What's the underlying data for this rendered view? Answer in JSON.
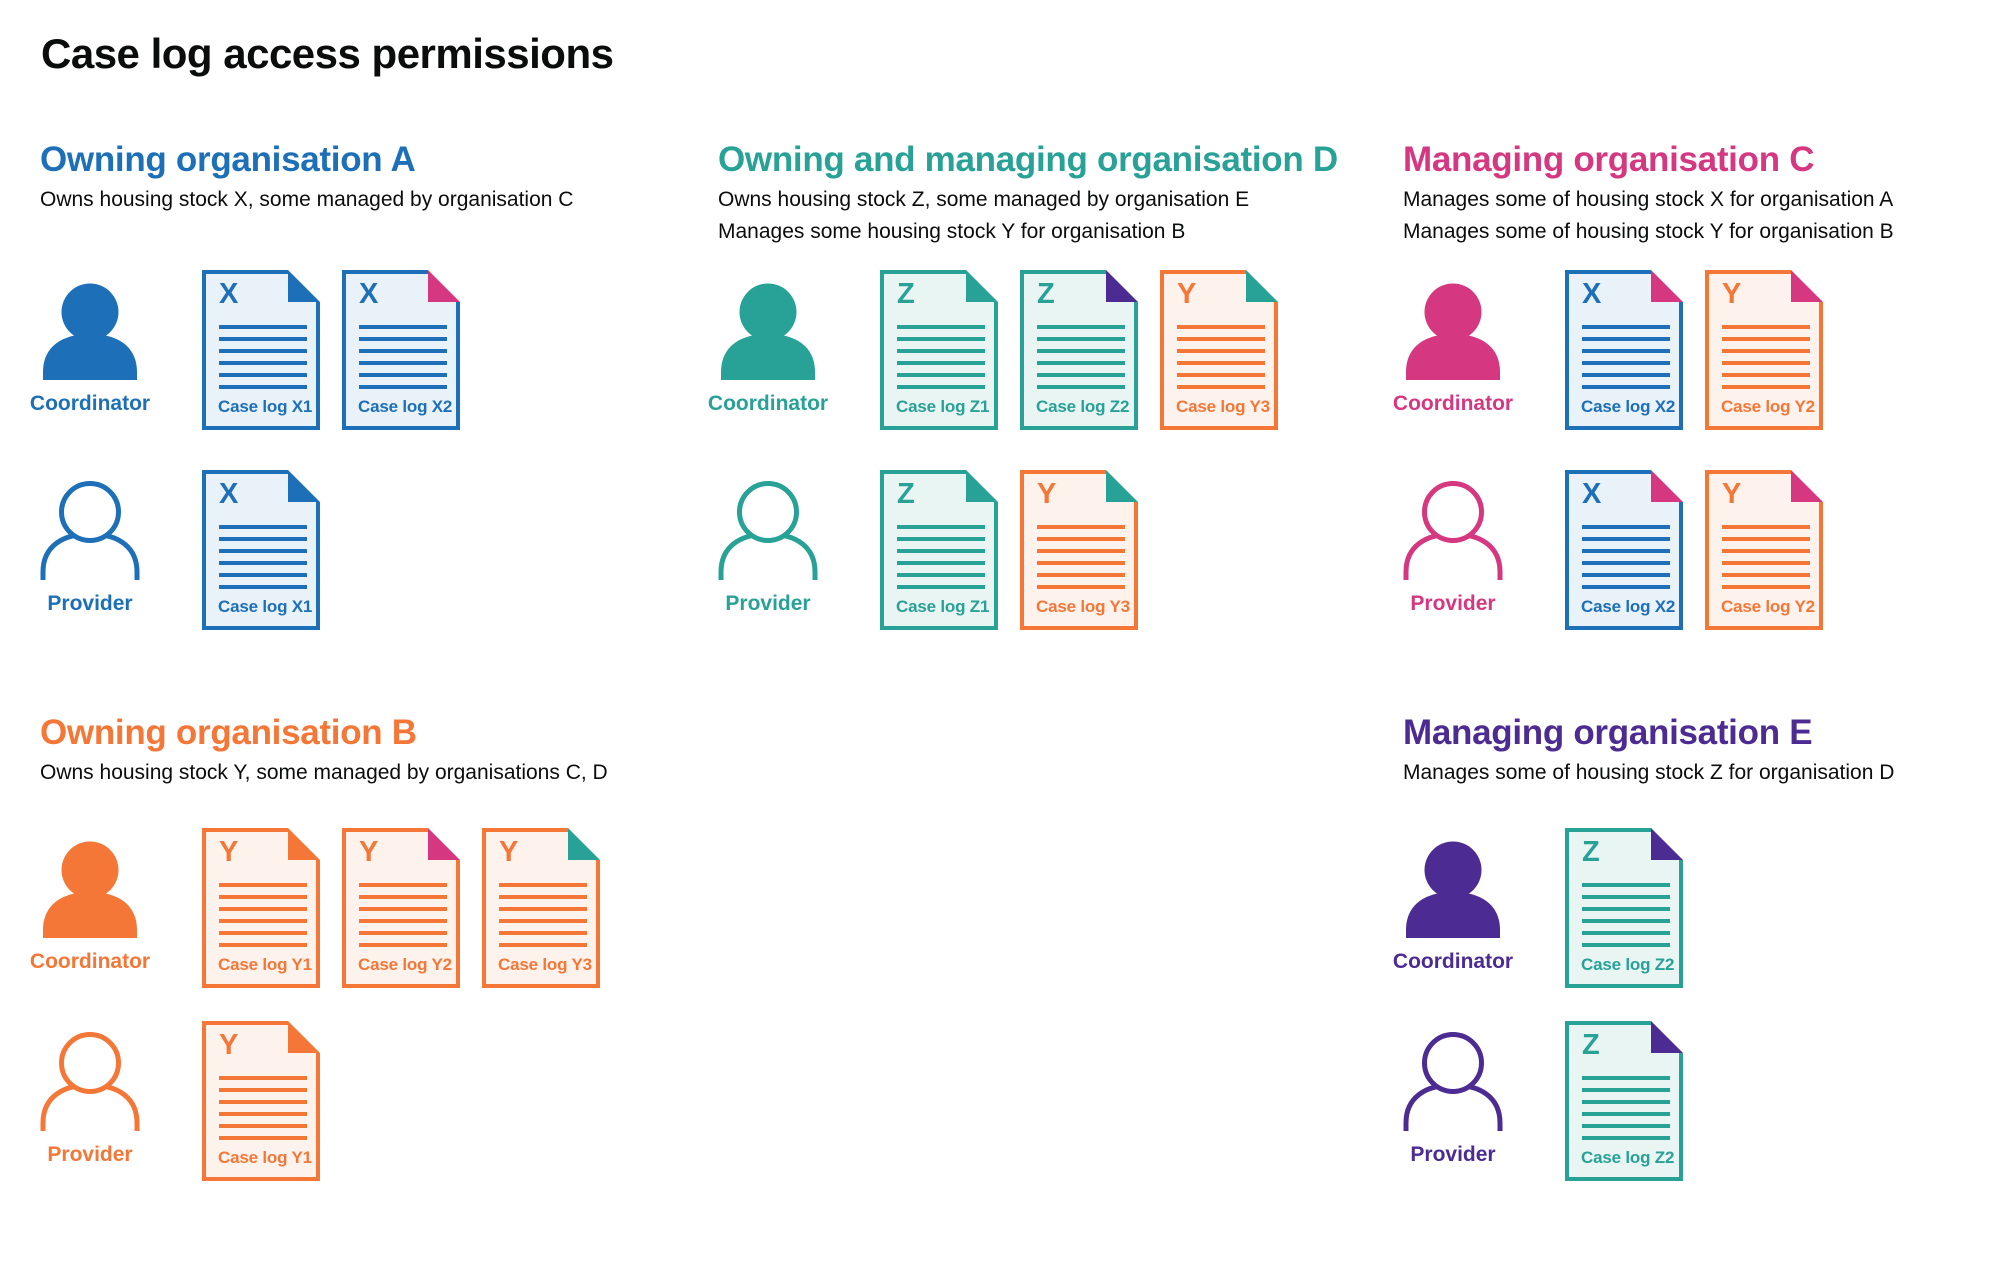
{
  "page_title": "Case log access permissions",
  "palette": {
    "blue": "#1d70b8",
    "teal": "#28a197",
    "orange": "#f47738",
    "pink": "#d53880",
    "purple": "#4c2c92",
    "text": "#0b0c0c",
    "blue_tint": "#e9f1f9",
    "teal_tint": "#e9f5f3",
    "orange_tint": "#fdf2ec"
  },
  "roles": {
    "coordinator": "Coordinator",
    "provider": "Provider"
  },
  "sections": [
    {
      "id": "org-a",
      "title": "Owning organisation A",
      "color": "blue",
      "description": [
        "Owns housing stock X, some managed by organisation C"
      ],
      "rows": [
        {
          "role": "Coordinator",
          "docs": [
            {
              "letter": "X",
              "label": "Case log X1",
              "scheme": "blue",
              "fold": "blue"
            },
            {
              "letter": "X",
              "label": "Case log X2",
              "scheme": "blue",
              "fold": "pink"
            }
          ]
        },
        {
          "role": "Provider",
          "docs": [
            {
              "letter": "X",
              "label": "Case log X1",
              "scheme": "blue",
              "fold": "blue"
            }
          ]
        }
      ]
    },
    {
      "id": "org-d",
      "title": "Owning and managing organisation D",
      "color": "teal",
      "description": [
        "Owns housing stock Z, some managed by organisation E",
        "Manages some housing stock Y for organisation B"
      ],
      "rows": [
        {
          "role": "Coordinator",
          "docs": [
            {
              "letter": "Z",
              "label": "Case log Z1",
              "scheme": "teal",
              "fold": "teal"
            },
            {
              "letter": "Z",
              "label": "Case log Z2",
              "scheme": "teal",
              "fold": "purple"
            },
            {
              "letter": "Y",
              "label": "Case log Y3",
              "scheme": "orange",
              "fold": "teal"
            }
          ]
        },
        {
          "role": "Provider",
          "docs": [
            {
              "letter": "Z",
              "label": "Case log Z1",
              "scheme": "teal",
              "fold": "teal"
            },
            {
              "letter": "Y",
              "label": "Case log Y3",
              "scheme": "orange",
              "fold": "teal"
            }
          ]
        }
      ]
    },
    {
      "id": "org-c",
      "title": "Managing organisation C",
      "color": "pink",
      "description": [
        "Manages some of housing stock X for organisation A",
        "Manages some of housing stock Y for organisation B"
      ],
      "rows": [
        {
          "role": "Coordinator",
          "docs": [
            {
              "letter": "X",
              "label": "Case log X2",
              "scheme": "blue",
              "fold": "pink"
            },
            {
              "letter": "Y",
              "label": "Case log Y2",
              "scheme": "orange",
              "fold": "pink"
            }
          ]
        },
        {
          "role": "Provider",
          "docs": [
            {
              "letter": "X",
              "label": "Case log X2",
              "scheme": "blue",
              "fold": "pink"
            },
            {
              "letter": "Y",
              "label": "Case log Y2",
              "scheme": "orange",
              "fold": "pink"
            }
          ]
        }
      ]
    },
    {
      "id": "org-b",
      "title": "Owning organisation B",
      "color": "orange",
      "description": [
        "Owns housing stock Y, some managed by organisations C, D"
      ],
      "rows": [
        {
          "role": "Coordinator",
          "docs": [
            {
              "letter": "Y",
              "label": "Case log Y1",
              "scheme": "orange",
              "fold": "orange"
            },
            {
              "letter": "Y",
              "label": "Case log Y2",
              "scheme": "orange",
              "fold": "pink"
            },
            {
              "letter": "Y",
              "label": "Case log Y3",
              "scheme": "orange",
              "fold": "teal"
            }
          ]
        },
        {
          "role": "Provider",
          "docs": [
            {
              "letter": "Y",
              "label": "Case log Y1",
              "scheme": "orange",
              "fold": "orange"
            }
          ]
        }
      ]
    },
    {
      "id": "org-e",
      "title": "Managing organisation E",
      "color": "purple",
      "description": [
        "Manages some of housing stock Z for organisation D"
      ],
      "rows": [
        {
          "role": "Coordinator",
          "docs": [
            {
              "letter": "Z",
              "label": "Case log Z2",
              "scheme": "teal",
              "fold": "purple"
            }
          ]
        },
        {
          "role": "Provider",
          "docs": [
            {
              "letter": "Z",
              "label": "Case log Z2",
              "scheme": "teal",
              "fold": "purple"
            }
          ]
        }
      ]
    }
  ]
}
